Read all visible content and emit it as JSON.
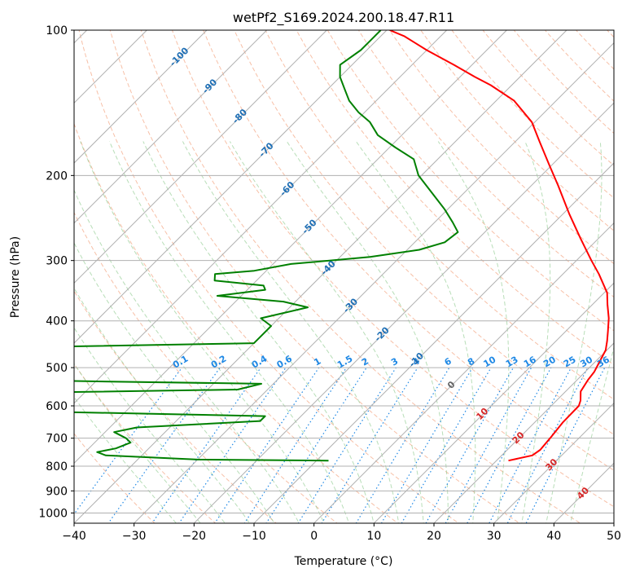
{
  "chart_data": {
    "type": "line",
    "subtype": "skew-T log-P",
    "title": "wetPf2_S169.2024.200.18.47.R11",
    "xlabel": "Temperature (°C)",
    "ylabel": "Pressure (hPa)",
    "xlim": [
      -40,
      50
    ],
    "ylim": [
      1050,
      100
    ],
    "y_scale": "log",
    "skew": 45,
    "grid": true,
    "x_ticks": [
      -40,
      -30,
      -20,
      -10,
      0,
      10,
      20,
      30,
      40,
      50
    ],
    "y_ticks": [
      100,
      200,
      300,
      400,
      500,
      600,
      700,
      800,
      900,
      1000
    ],
    "x_tick_labels": [
      "−40",
      "−30",
      "−20",
      "−10",
      "0",
      "10",
      "20",
      "30",
      "40",
      "50"
    ],
    "y_tick_labels": [
      "100",
      "200",
      "300",
      "400",
      "500",
      "600",
      "700",
      "800",
      "900",
      "1000"
    ],
    "isotherm_labels": [
      {
        "value": -100,
        "text": "-100"
      },
      {
        "value": -90,
        "text": "-90"
      },
      {
        "value": -80,
        "text": "-80"
      },
      {
        "value": -70,
        "text": "-70"
      },
      {
        "value": -60,
        "text": "-60"
      },
      {
        "value": -50,
        "text": "-50"
      },
      {
        "value": -40,
        "text": "-40"
      },
      {
        "value": -30,
        "text": "-30"
      },
      {
        "value": -20,
        "text": "-20"
      },
      {
        "value": -10,
        "text": "-10"
      },
      {
        "value": 0,
        "text": "0"
      },
      {
        "value": 10,
        "text": "10"
      },
      {
        "value": 20,
        "text": "20"
      },
      {
        "value": 30,
        "text": "30"
      },
      {
        "value": 40,
        "text": "40"
      }
    ],
    "mixing_ratio_labels": [
      "0.1",
      "0.2",
      "0.4",
      "0.6",
      "1",
      "1.5",
      "2",
      "3",
      "4",
      "6",
      "8",
      "10",
      "13",
      "16",
      "20",
      "25",
      "30",
      "36"
    ],
    "mixing_ratio_values": [
      0.1,
      0.2,
      0.4,
      0.6,
      1,
      1.5,
      2,
      3,
      4,
      6,
      8,
      10,
      13,
      16,
      20,
      25,
      30,
      36
    ],
    "series": [
      {
        "key": "temperature",
        "color": "#ff0000",
        "points": [
          [
            779,
            22.0
          ],
          [
            760,
            25.1
          ],
          [
            740,
            25.5
          ],
          [
            700,
            25.2
          ],
          [
            650,
            24.7
          ],
          [
            600,
            24.6
          ],
          [
            585,
            24.0
          ],
          [
            560,
            22.5
          ],
          [
            530,
            21.8
          ],
          [
            510,
            21.5
          ],
          [
            480,
            20.5
          ],
          [
            460,
            19.8
          ],
          [
            440,
            18.5
          ],
          [
            420,
            17.0
          ],
          [
            395,
            15.0
          ],
          [
            370,
            12.5
          ],
          [
            350,
            10.5
          ],
          [
            320,
            6.0
          ],
          [
            300,
            2.5
          ],
          [
            270,
            -3.0
          ],
          [
            240,
            -9.0
          ],
          [
            210,
            -15.5
          ],
          [
            190,
            -20.5
          ],
          [
            170,
            -26.0
          ],
          [
            155,
            -30.5
          ],
          [
            140,
            -37.0
          ],
          [
            130,
            -43.5
          ],
          [
            125,
            -47.5
          ],
          [
            118,
            -53.0
          ],
          [
            110,
            -60.0
          ],
          [
            103,
            -66.0
          ],
          [
            100,
            -69.5
          ]
        ]
      },
      {
        "key": "dewpoint",
        "color": "#008000",
        "points": [
          [
            779,
            -8.0
          ],
          [
            775,
            -30.0
          ],
          [
            760,
            -46.0
          ],
          [
            748,
            -48.0
          ],
          [
            735,
            -45.5
          ],
          [
            715,
            -44.0
          ],
          [
            700,
            -45.5
          ],
          [
            680,
            -48.5
          ],
          [
            665,
            -45.5
          ],
          [
            645,
            -26.0
          ],
          [
            630,
            -26.0
          ],
          [
            618,
            -60.0
          ],
          [
            610,
            -78.0
          ],
          [
            570,
            -95.0
          ],
          [
            555,
            -35.0
          ],
          [
            540,
            -32.0
          ],
          [
            525,
            -100.0
          ],
          [
            460,
            -85.0
          ],
          [
            452,
            -70.0
          ],
          [
            445,
            -40.0
          ],
          [
            430,
            -40.0
          ],
          [
            410,
            -40.0
          ],
          [
            395,
            -43.0
          ],
          [
            385,
            -40.0
          ],
          [
            375,
            -37.0
          ],
          [
            365,
            -42.0
          ],
          [
            355,
            -54.0
          ],
          [
            345,
            -47.0
          ],
          [
            338,
            -48.0
          ],
          [
            330,
            -57.0
          ],
          [
            320,
            -58.0
          ],
          [
            315,
            -52.0
          ],
          [
            305,
            -47.0
          ],
          [
            295,
            -35.0
          ],
          [
            285,
            -28.0
          ],
          [
            275,
            -25.0
          ],
          [
            262,
            -24.5
          ],
          [
            250,
            -27.0
          ],
          [
            235,
            -30.5
          ],
          [
            215,
            -36.0
          ],
          [
            200,
            -40.5
          ],
          [
            185,
            -44.0
          ],
          [
            175,
            -49.0
          ],
          [
            165,
            -54.0
          ],
          [
            155,
            -57.5
          ],
          [
            148,
            -61.0
          ],
          [
            140,
            -64.5
          ],
          [
            133,
            -67.0
          ],
          [
            125,
            -70.0
          ],
          [
            118,
            -72.0
          ],
          [
            110,
            -71.0
          ],
          [
            105,
            -71.0
          ],
          [
            100,
            -71.0
          ]
        ]
      }
    ]
  }
}
